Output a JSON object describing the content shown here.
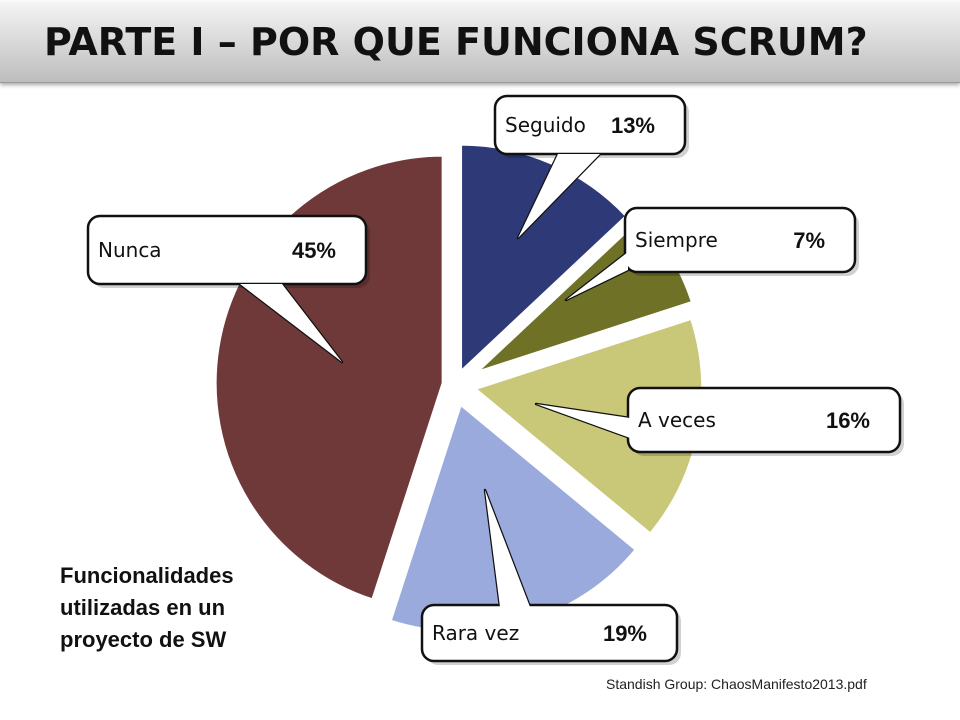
{
  "slide": {
    "title": "PARTE I – POR QUE FUNCIONA SCRUM?",
    "caption_lines": [
      "Funcionalidades",
      "utilizadas en un",
      "proyecto de SW"
    ],
    "source": "Standish Group:  ChaosManifesto2013.pdf"
  },
  "chart_data": {
    "type": "pie",
    "title": "",
    "slices": [
      {
        "label": "Seguido",
        "value_label": "13%",
        "value": 13,
        "color": "#2e3a78"
      },
      {
        "label": "Siempre",
        "value_label": "7%",
        "value": 7,
        "color": "#6e7126"
      },
      {
        "label": "A veces",
        "value_label": "16%",
        "value": 16,
        "color": "#c9c878"
      },
      {
        "label": "Rara vez",
        "value_label": "19%",
        "value": 19,
        "color": "#9aaadc"
      },
      {
        "label": "Nunca",
        "value_label": "45%",
        "value": 45,
        "color": "#6f3939"
      }
    ],
    "exploded": true,
    "legend": "callouts"
  }
}
